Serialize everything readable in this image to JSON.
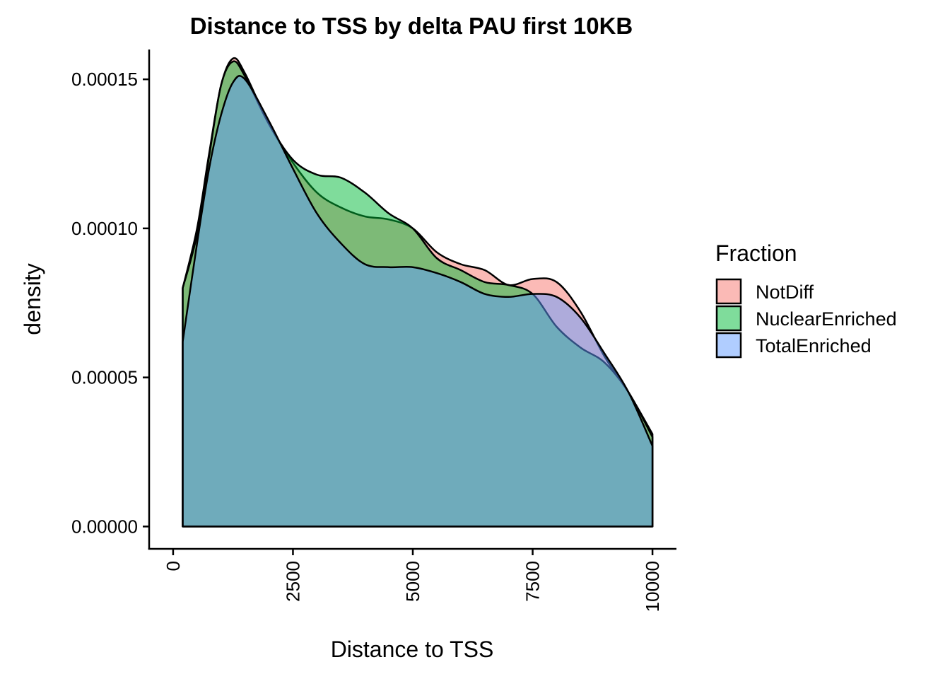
{
  "chart_data": {
    "type": "area",
    "title": "Distance to TSS by delta PAU first 10KB",
    "xlabel": "Distance to TSS",
    "ylabel": "density",
    "xlim": [
      -500,
      10500
    ],
    "ylim": [
      -7.5e-06,
      0.00016
    ],
    "x_ticks": [
      0,
      2500,
      5000,
      7500,
      10000
    ],
    "x_tick_labels": [
      "0",
      "2500",
      "5000",
      "7500",
      "10000"
    ],
    "y_ticks": [
      0,
      5e-05,
      0.0001,
      0.00015
    ],
    "y_tick_labels": [
      "0.00000",
      "0.00005",
      "0.00010",
      "0.00015"
    ],
    "legend_title": "Fraction",
    "legend_position": "right",
    "x": [
      200,
      500,
      750,
      1000,
      1250,
      1500,
      2000,
      2500,
      3000,
      3500,
      4000,
      4500,
      5000,
      5500,
      6000,
      6500,
      7000,
      7500,
      8000,
      8500,
      9000,
      9500,
      10000
    ],
    "series": [
      {
        "name": "NotDiff",
        "color": "#F8766D",
        "values": [
          8e-05,
          0.0001,
          0.000125,
          0.000148,
          0.000157,
          0.000152,
          0.000135,
          0.000122,
          0.000112,
          0.000107,
          0.000104,
          0.000103,
          0.0001,
          9.2e-05,
          8.8e-05,
          8.6e-05,
          8.1e-05,
          8.3e-05,
          8.2e-05,
          7.2e-05,
          5.7e-05,
          4.5e-05,
          3.1e-05
        ]
      },
      {
        "name": "NuclearEnriched",
        "color": "#00BA38",
        "values": [
          8e-05,
          9.8e-05,
          0.000124,
          0.000148,
          0.000156,
          0.000151,
          0.000135,
          0.000123,
          0.000118,
          0.000117,
          0.000112,
          0.000105,
          0.0001,
          9e-05,
          8.6e-05,
          8.2e-05,
          8.1e-05,
          7.8e-05,
          6.7e-05,
          6e-05,
          5.5e-05,
          4.5e-05,
          3e-05
        ]
      },
      {
        "name": "TotalEnriched",
        "color": "#619CFF",
        "values": [
          6.2e-05,
          9.5e-05,
          0.00012,
          0.000138,
          0.000149,
          0.00015,
          0.000136,
          0.00012,
          0.000105,
          9.5e-05,
          8.8e-05,
          8.7e-05,
          8.7e-05,
          8.5e-05,
          8.2e-05,
          7.8e-05,
          7.7e-05,
          7.8e-05,
          7.7e-05,
          7e-05,
          5.8e-05,
          4.5e-05,
          2.7e-05
        ]
      }
    ]
  }
}
